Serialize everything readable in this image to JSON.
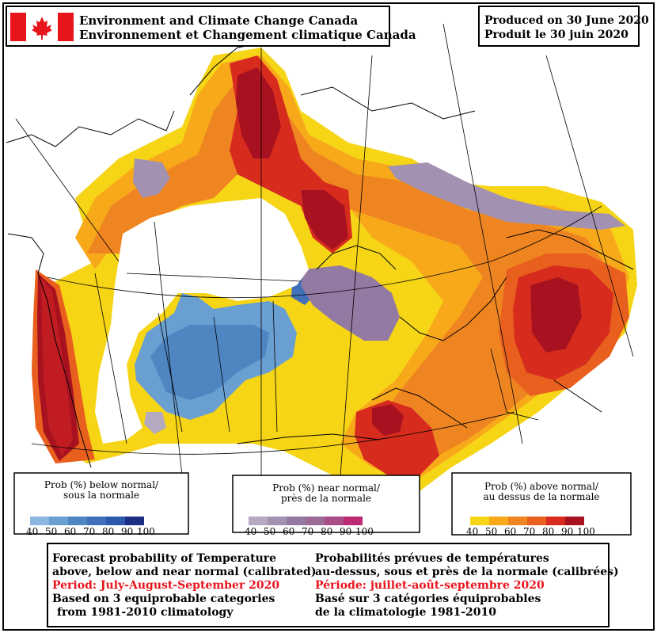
{
  "header": {
    "agency_en": "Environment and Climate Change Canada",
    "agency_fr": "Environnement et Changement climatique Canada",
    "produced_en": "Produced on 30 June 2020",
    "produced_fr": "Produit le 30 juin 2020"
  },
  "legends": {
    "below": {
      "title_en": "Prob (%) below normal/",
      "title_fr": "sous la normale",
      "ticks": [
        "40",
        "50",
        "60",
        "70",
        "80",
        "90",
        "100"
      ],
      "colors": [
        "#8cb7e0",
        "#6a9fd1",
        "#4f86c2",
        "#3f70b9",
        "#2c58ac",
        "#1a2f84"
      ]
    },
    "near": {
      "title_en": "Prob (%) near normal/",
      "title_fr": "près de la normale",
      "ticks": [
        "40",
        "50",
        "60",
        "70",
        "80",
        "90",
        "100"
      ],
      "colors": [
        "#b5a9c0",
        "#a291b0",
        "#927aa2",
        "#9c6b96",
        "#a84d88",
        "#bb2a73"
      ]
    },
    "above": {
      "title_en": "Prob (%) above normal/",
      "title_fr": "au dessus de la normale",
      "ticks": [
        "40",
        "50",
        "60",
        "70",
        "80",
        "90",
        "100"
      ],
      "colors": [
        "#f5d516",
        "#f7a91a",
        "#ef8521",
        "#e9601e",
        "#d72b1e",
        "#a81220"
      ]
    }
  },
  "info": {
    "en": {
      "line1": "Forecast probability of Temperature",
      "line2": "above, below and near normal (calibrated)",
      "period": "Period: July-August-September 2020",
      "line4": "Based on 3 equiprobable categories",
      "line5": "from 1981-2010 climatology"
    },
    "fr": {
      "line1": "Probabilités prévues de températures",
      "line2": "au-dessus, sous et près de la normale (calibrées)",
      "period": "Période: juillet-août-septembre 2020",
      "line4": "Basé sur 3 catégories équiprobables",
      "line5": "de la climatologie 1981-2010"
    }
  },
  "colors": {
    "flag_red": "#e8141c",
    "period_red": "#e8141c"
  }
}
